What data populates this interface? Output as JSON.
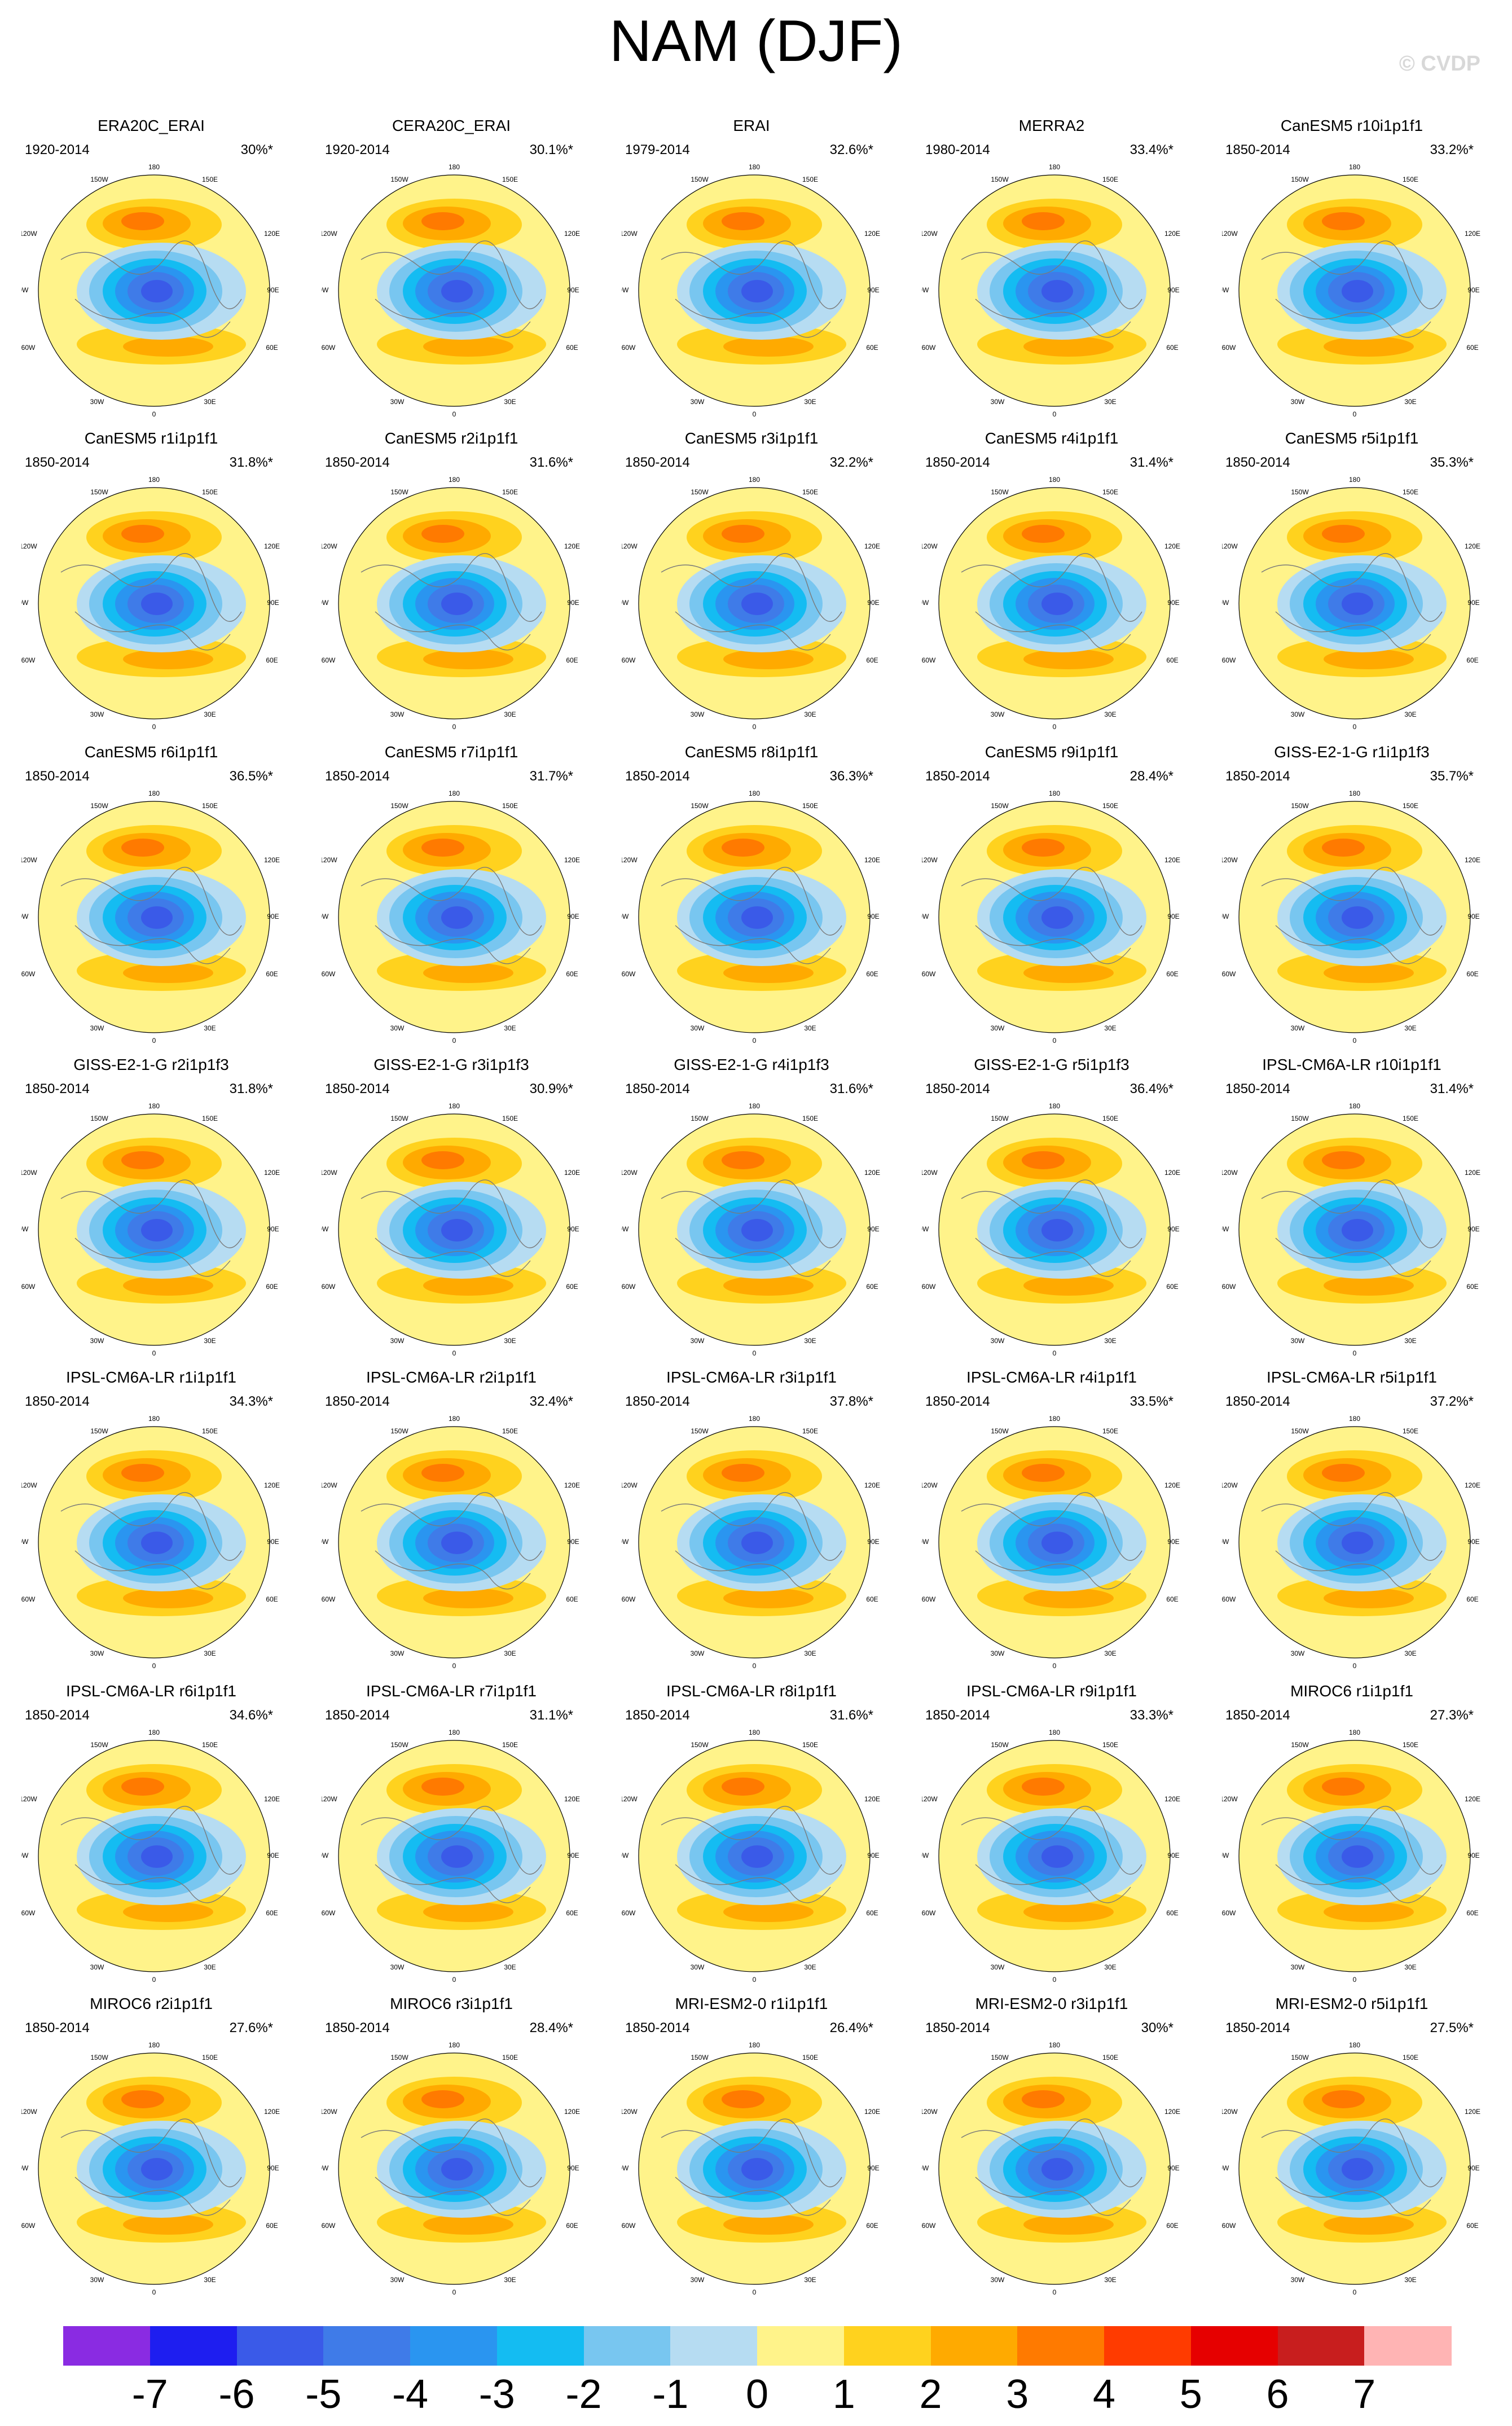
{
  "title": "NAM (DJF)",
  "watermark": "© CVDP",
  "map_labels": {
    "lon180": "180",
    "lon0": "0",
    "lon150W": "150W",
    "lon150E": "150E",
    "lon120W": "120W",
    "lon120E": "120E",
    "lon90W": "90W",
    "lon90E": "90E",
    "lon60W": "60W",
    "lon60E": "60E",
    "lon30W": "30W",
    "lon30E": "30E"
  },
  "panels": [
    {
      "name": "ERA20C_ERAI",
      "period": "1920-2014",
      "pct": "30%*"
    },
    {
      "name": "CERA20C_ERAI",
      "period": "1920-2014",
      "pct": "30.1%*"
    },
    {
      "name": "ERAI",
      "period": "1979-2014",
      "pct": "32.6%*"
    },
    {
      "name": "MERRA2",
      "period": "1980-2014",
      "pct": "33.4%*"
    },
    {
      "name": "CanESM5 r10i1p1f1",
      "period": "1850-2014",
      "pct": "33.2%*"
    },
    {
      "name": "CanESM5 r1i1p1f1",
      "period": "1850-2014",
      "pct": "31.8%*"
    },
    {
      "name": "CanESM5 r2i1p1f1",
      "period": "1850-2014",
      "pct": "31.6%*"
    },
    {
      "name": "CanESM5 r3i1p1f1",
      "period": "1850-2014",
      "pct": "32.2%*"
    },
    {
      "name": "CanESM5 r4i1p1f1",
      "period": "1850-2014",
      "pct": "31.4%*"
    },
    {
      "name": "CanESM5 r5i1p1f1",
      "period": "1850-2014",
      "pct": "35.3%*"
    },
    {
      "name": "CanESM5 r6i1p1f1",
      "period": "1850-2014",
      "pct": "36.5%*"
    },
    {
      "name": "CanESM5 r7i1p1f1",
      "period": "1850-2014",
      "pct": "31.7%*"
    },
    {
      "name": "CanESM5 r8i1p1f1",
      "period": "1850-2014",
      "pct": "36.3%*"
    },
    {
      "name": "CanESM5 r9i1p1f1",
      "period": "1850-2014",
      "pct": "28.4%*"
    },
    {
      "name": "GISS-E2-1-G r1i1p1f3",
      "period": "1850-2014",
      "pct": "35.7%*"
    },
    {
      "name": "GISS-E2-1-G r2i1p1f3",
      "period": "1850-2014",
      "pct": "31.8%*"
    },
    {
      "name": "GISS-E2-1-G r3i1p1f3",
      "period": "1850-2014",
      "pct": "30.9%*"
    },
    {
      "name": "GISS-E2-1-G r4i1p1f3",
      "period": "1850-2014",
      "pct": "31.6%*"
    },
    {
      "name": "GISS-E2-1-G r5i1p1f3",
      "period": "1850-2014",
      "pct": "36.4%*"
    },
    {
      "name": "IPSL-CM6A-LR r10i1p1f1",
      "period": "1850-2014",
      "pct": "31.4%*"
    },
    {
      "name": "IPSL-CM6A-LR r1i1p1f1",
      "period": "1850-2014",
      "pct": "34.3%*"
    },
    {
      "name": "IPSL-CM6A-LR r2i1p1f1",
      "period": "1850-2014",
      "pct": "32.4%*"
    },
    {
      "name": "IPSL-CM6A-LR r3i1p1f1",
      "period": "1850-2014",
      "pct": "37.8%*"
    },
    {
      "name": "IPSL-CM6A-LR r4i1p1f1",
      "period": "1850-2014",
      "pct": "33.5%*"
    },
    {
      "name": "IPSL-CM6A-LR r5i1p1f1",
      "period": "1850-2014",
      "pct": "37.2%*"
    },
    {
      "name": "IPSL-CM6A-LR r6i1p1f1",
      "period": "1850-2014",
      "pct": "34.6%*"
    },
    {
      "name": "IPSL-CM6A-LR r7i1p1f1",
      "period": "1850-2014",
      "pct": "31.1%*"
    },
    {
      "name": "IPSL-CM6A-LR r8i1p1f1",
      "period": "1850-2014",
      "pct": "31.6%*"
    },
    {
      "name": "IPSL-CM6A-LR r9i1p1f1",
      "period": "1850-2014",
      "pct": "33.3%*"
    },
    {
      "name": "MIROC6 r1i1p1f1",
      "period": "1850-2014",
      "pct": "27.3%*"
    },
    {
      "name": "MIROC6 r2i1p1f1",
      "period": "1850-2014",
      "pct": "27.6%*"
    },
    {
      "name": "MIROC6 r3i1p1f1",
      "period": "1850-2014",
      "pct": "28.4%*"
    },
    {
      "name": "MRI-ESM2-0 r1i1p1f1",
      "period": "1850-2014",
      "pct": "26.4%*"
    },
    {
      "name": "MRI-ESM2-0 r3i1p1f1",
      "period": "1850-2014",
      "pct": "30%*"
    },
    {
      "name": "MRI-ESM2-0 r5i1p1f1",
      "period": "1850-2014",
      "pct": "27.5%*"
    }
  ],
  "colorbar": {
    "labels": [
      "-7",
      "-6",
      "-5",
      "-4",
      "-3",
      "-2",
      "-1",
      "0",
      "1",
      "2",
      "3",
      "4",
      "5",
      "6",
      "7"
    ],
    "colors": [
      "#8a2be2",
      "#1e1ef0",
      "#3a5ae8",
      "#3f7be8",
      "#2a95f0",
      "#14bcf2",
      "#78c6f0",
      "#b6dcf2",
      "#fff38a",
      "#ffd21e",
      "#ffaa00",
      "#ff7a00",
      "#ff3b00",
      "#e60000",
      "#c81e1e",
      "#ffb4b4"
    ]
  }
}
